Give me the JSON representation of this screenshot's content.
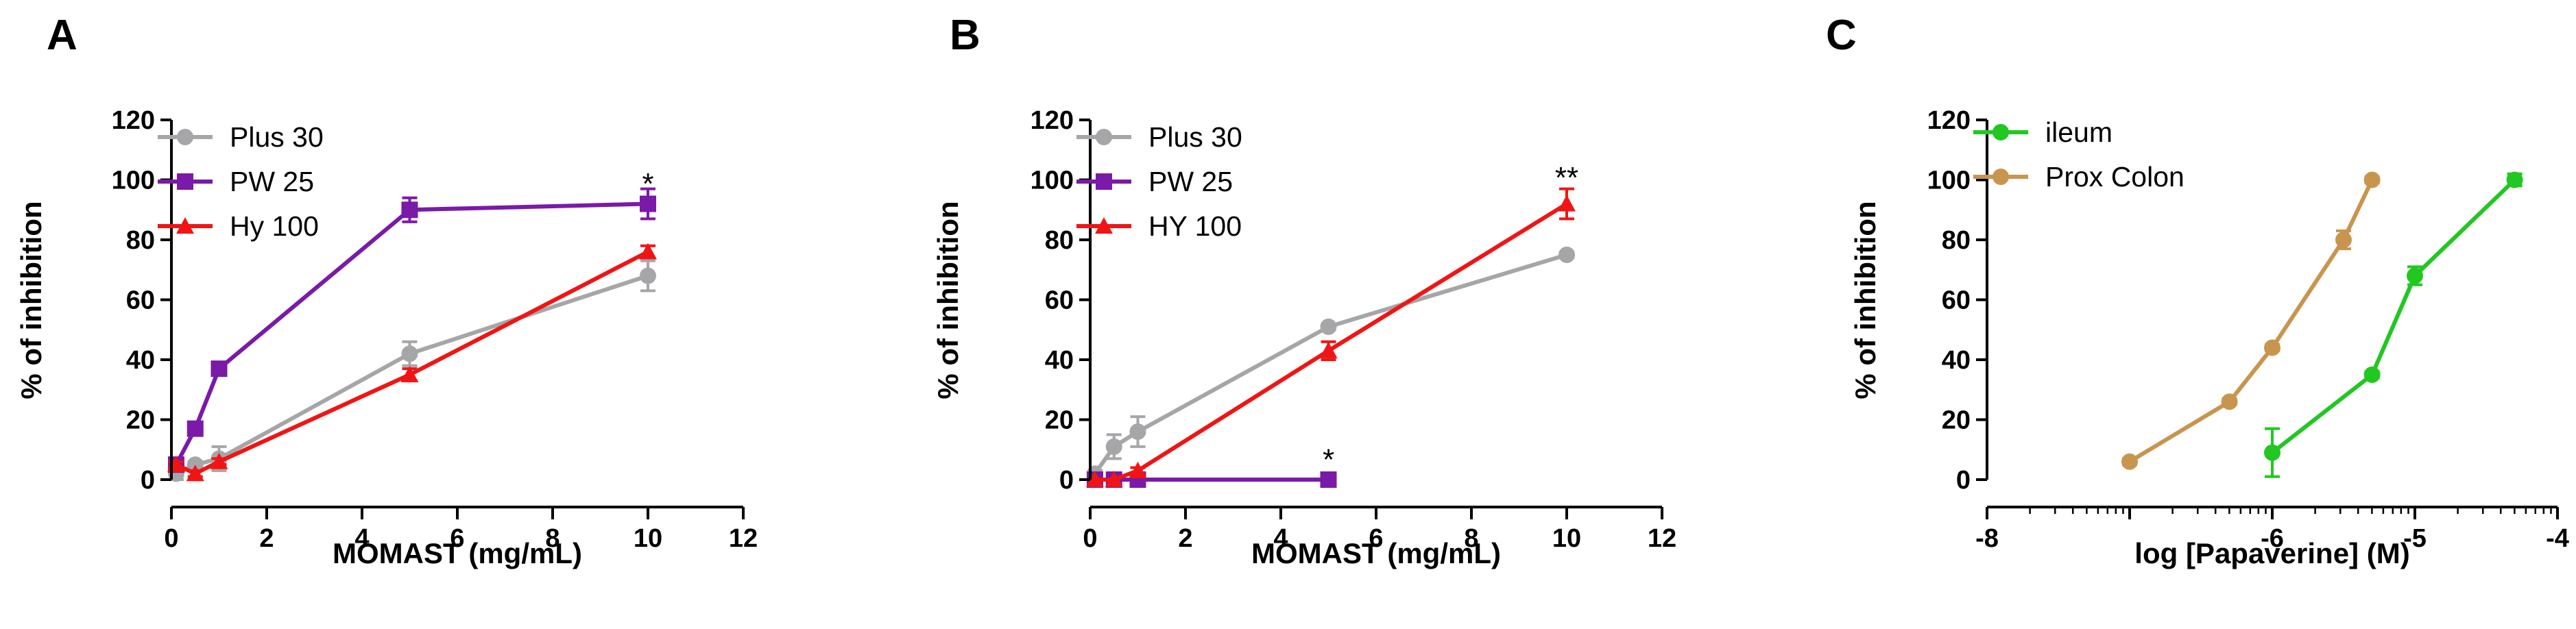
{
  "colors": {
    "grey": "#a6a6a8",
    "purple": "#7a1aa8",
    "red": "#f01515",
    "green": "#22c722",
    "tan": "#c8954f",
    "axis": "#000000"
  },
  "chart_data": [
    {
      "panel": "A",
      "type": "line",
      "xlabel": "MOMAST (mg/mL)",
      "ylabel": "% of inhibition",
      "xlim": [
        0,
        12
      ],
      "ylim": [
        0,
        120
      ],
      "xticks": [
        0,
        2,
        4,
        6,
        8,
        10,
        12
      ],
      "yticks": [
        0,
        20,
        40,
        60,
        80,
        100,
        120
      ],
      "series": [
        {
          "name": "Plus 30",
          "color": "grey",
          "marker": "circle",
          "x": [
            0.1,
            0.5,
            1,
            5,
            10
          ],
          "y": [
            2,
            5,
            7,
            42,
            68
          ],
          "err": [
            2,
            1,
            4,
            4,
            5
          ]
        },
        {
          "name": "PW 25",
          "color": "purple",
          "marker": "square",
          "x": [
            0.1,
            0.5,
            1,
            5,
            10
          ],
          "y": [
            5,
            17,
            37,
            90,
            92
          ],
          "err": [
            1,
            1,
            2,
            4,
            5
          ]
        },
        {
          "name": "Hy 100",
          "color": "red",
          "marker": "triangle",
          "x": [
            0.1,
            0.5,
            1,
            5,
            10
          ],
          "y": [
            5,
            2,
            6,
            35,
            76
          ],
          "err": [
            1,
            1,
            1,
            2,
            2
          ]
        }
      ],
      "annotations": [
        {
          "text": "*",
          "x": 10,
          "y": 99
        }
      ]
    },
    {
      "panel": "B",
      "type": "line",
      "xlabel": "MOMAST (mg/mL)",
      "ylabel": "% of inhibition",
      "xlim": [
        0,
        12
      ],
      "ylim": [
        0,
        120
      ],
      "xticks": [
        0,
        2,
        4,
        6,
        8,
        10,
        12
      ],
      "yticks": [
        0,
        20,
        40,
        60,
        80,
        100,
        120
      ],
      "series": [
        {
          "name": "Plus 30",
          "color": "grey",
          "marker": "circle",
          "x": [
            0.1,
            0.5,
            1,
            5,
            10
          ],
          "y": [
            2,
            11,
            16,
            51,
            75
          ],
          "err": [
            1,
            4,
            5,
            1,
            1
          ]
        },
        {
          "name": "PW 25",
          "color": "purple",
          "marker": "square",
          "x": [
            0.1,
            0.5,
            1,
            5
          ],
          "y": [
            0,
            0,
            0,
            0
          ],
          "err": [
            0,
            0,
            0,
            0
          ]
        },
        {
          "name": "HY 100",
          "color": "red",
          "marker": "triangle",
          "x": [
            0.1,
            0.5,
            1,
            5,
            10
          ],
          "y": [
            0,
            0,
            3,
            43,
            92
          ],
          "err": [
            0,
            0,
            1,
            3,
            5
          ]
        }
      ],
      "annotations": [
        {
          "text": "*",
          "x": 5,
          "y": 7
        },
        {
          "text": "**",
          "x": 10,
          "y": 101
        }
      ]
    },
    {
      "panel": "C",
      "type": "line",
      "xlabel": "log [Papaverine] (M)",
      "ylabel": "% of inhibition",
      "xlim": [
        -8,
        -4
      ],
      "ylim": [
        0,
        120
      ],
      "xticks": [
        -8,
        -6,
        -5,
        -4
      ],
      "xtick_labels": [
        "-8",
        "-6",
        "-5",
        "-4"
      ],
      "yticks": [
        0,
        20,
        40,
        60,
        80,
        100,
        120
      ],
      "x_scale": "log-broken",
      "series": [
        {
          "name": "ileum",
          "color": "green",
          "marker": "circle",
          "x": [
            -6,
            -5.3,
            -5,
            -4.3
          ],
          "y": [
            9,
            35,
            68,
            100
          ],
          "err": [
            8,
            1,
            3,
            2
          ]
        },
        {
          "name": "Prox Colon",
          "color": "tan",
          "marker": "circle",
          "x": [
            -7,
            -6.3,
            -6,
            -5.5,
            -5.3
          ],
          "y": [
            6,
            26,
            44,
            80,
            100
          ],
          "err": [
            1,
            1,
            1,
            3,
            1
          ]
        }
      ],
      "annotations": []
    }
  ]
}
